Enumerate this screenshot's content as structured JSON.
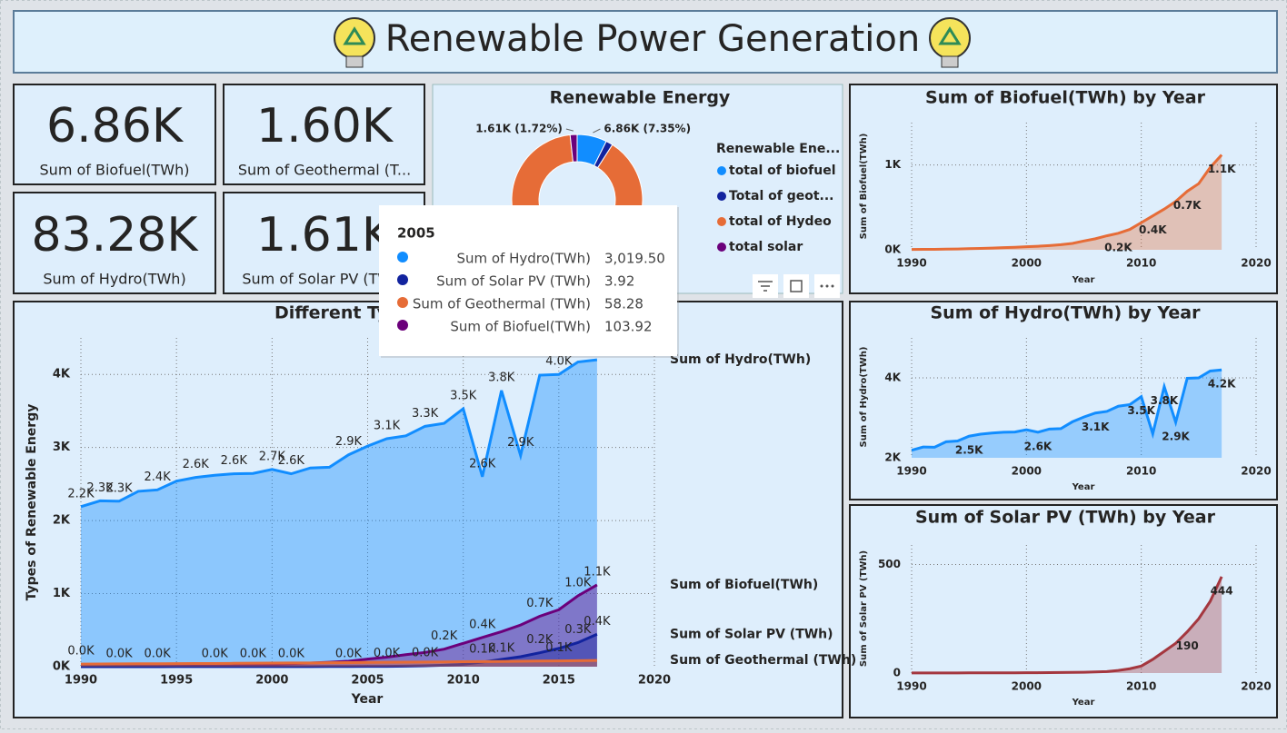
{
  "header": {
    "title": "Renewable Power Generation"
  },
  "kpis": [
    {
      "value": "6.86K",
      "label": "Sum of Biofuel(TWh)"
    },
    {
      "value": "1.60K",
      "label": "Sum of Geothermal (T..."
    },
    {
      "value": "83.28K",
      "label": "Sum of Hydro(TWh)"
    },
    {
      "value": "1.61K",
      "label": "Sum of Solar PV (TWh)"
    }
  ],
  "tooltip": {
    "title": "2005",
    "rows": [
      {
        "label": "Sum of Hydro(TWh)",
        "value": "3,019.50",
        "color": "#118dff"
      },
      {
        "label": "Sum of Solar PV (TWh)",
        "value": "3.92",
        "color": "#12239e"
      },
      {
        "label": "Sum of Geothermal (TWh)",
        "value": "58.28",
        "color": "#e66c37"
      },
      {
        "label": "Sum of Biofuel(TWh)",
        "value": "103.92",
        "color": "#6b007b"
      }
    ]
  },
  "chart_data": [
    {
      "type": "donut",
      "title": "Renewable Energy",
      "legend_title": "Renewable Ene...",
      "categories": [
        "total of biofuel",
        "Total of geot...",
        "total of Hydeo",
        "total solar"
      ],
      "values": [
        6860,
        1600,
        83280,
        1610
      ],
      "value_labels": [
        "6.86K (7.35%)",
        null,
        null,
        "1.61K (1.72%)"
      ],
      "colors": [
        "#118dff",
        "#12239e",
        "#e66c37",
        "#6b007b"
      ]
    },
    {
      "type": "area",
      "title": "Different Types of Renewable Energy",
      "xlabel": "Year",
      "ylabel": "Types of Renewable Energy",
      "x": [
        1990,
        1991,
        1992,
        1993,
        1994,
        1995,
        1996,
        1997,
        1998,
        1999,
        2000,
        2001,
        2002,
        2003,
        2004,
        2005,
        2006,
        2007,
        2008,
        2009,
        2010,
        2011,
        2012,
        2013,
        2014,
        2015,
        2016,
        2017
      ],
      "xlim": [
        1990,
        2020
      ],
      "xticks": [
        1990,
        1995,
        2000,
        2005,
        2010,
        2015,
        2020
      ],
      "ylim": [
        0,
        4500
      ],
      "yticks": [
        {
          "value": 0,
          "label": "0K"
        },
        {
          "value": 1000,
          "label": "1K"
        },
        {
          "value": 2000,
          "label": "2K"
        },
        {
          "value": 3000,
          "label": "3K"
        },
        {
          "value": 4000,
          "label": "4K"
        }
      ],
      "grid": true,
      "series": [
        {
          "name": "Sum of Hydro(TWh)",
          "color": "#118dff",
          "values": [
            2190,
            2270,
            2265,
            2400,
            2420,
            2540,
            2590,
            2620,
            2640,
            2645,
            2700,
            2640,
            2720,
            2730,
            2900,
            3019.5,
            3120,
            3160,
            3290,
            3330,
            3530,
            2600,
            3780,
            2890,
            3990,
            4000,
            4170,
            4200
          ],
          "value_labels": [
            "2.2K",
            "2.3K",
            "2.3K",
            null,
            "2.4K",
            null,
            "2.6K",
            null,
            "2.6K",
            null,
            "2.7K",
            "2.6K",
            null,
            null,
            "2.9K",
            null,
            "3.1K",
            null,
            "3.3K",
            null,
            "3.5K",
            "2.6K",
            "3.8K",
            "2.9K",
            null,
            "4.0K",
            null,
            null
          ]
        },
        {
          "name": "Sum of Biofuel(TWh)",
          "color": "#6b007b",
          "values": [
            4,
            5,
            6,
            8,
            10,
            13,
            16,
            20,
            25,
            30,
            36,
            42,
            50,
            60,
            75,
            103.92,
            130,
            165,
            195,
            240,
            320,
            400,
            480,
            570,
            690,
            780,
            970,
            1120
          ],
          "value_labels": [
            null,
            null,
            null,
            null,
            null,
            null,
            null,
            null,
            null,
            null,
            null,
            null,
            null,
            null,
            null,
            null,
            null,
            null,
            null,
            "0.2K",
            null,
            "0.4K",
            null,
            null,
            "0.7K",
            null,
            "1.0K",
            "1.1K"
          ]
        },
        {
          "name": "Sum of Solar PV (TWh)",
          "color": "#12239e",
          "values": [
            0.4,
            0.5,
            0.5,
            0.6,
            0.7,
            0.8,
            0.9,
            1.0,
            1.1,
            1.3,
            1.5,
            1.8,
            2.0,
            2.5,
            3.0,
            3.92,
            5,
            7,
            12,
            20,
            32,
            63,
            100,
            137,
            190,
            250,
            330,
            444
          ],
          "value_labels": [
            null,
            null,
            "0.0K",
            null,
            "0.0K",
            null,
            null,
            "0.0K",
            null,
            "0.0K",
            null,
            "0.0K",
            null,
            null,
            "0.0K",
            null,
            "0.0K",
            null,
            "0.0K",
            null,
            null,
            "0.1K",
            null,
            null,
            "0.2K",
            null,
            "0.3K",
            "0.4K"
          ]
        },
        {
          "name": "Sum of Geothermal (TWh)",
          "color": "#e66c37",
          "values": [
            36,
            38,
            39,
            40,
            41,
            42,
            43,
            44,
            46,
            48,
            50,
            51,
            52,
            54,
            56,
            58.28,
            60,
            62,
            64,
            66,
            68,
            70,
            72,
            74,
            77,
            80,
            82,
            85
          ],
          "value_labels": [
            "0.0K",
            null,
            null,
            null,
            null,
            null,
            null,
            null,
            null,
            null,
            null,
            null,
            null,
            null,
            null,
            null,
            null,
            null,
            null,
            null,
            null,
            null,
            "0.1K",
            null,
            null,
            "0.1K",
            null,
            null
          ]
        }
      ]
    },
    {
      "type": "area",
      "title": "Sum of Biofuel(TWh) by Year",
      "xlabel": "Year",
      "ylabel": "Sum of Biofuel(TWh)",
      "color": "#e66c37",
      "x": [
        1990,
        1991,
        1992,
        1993,
        1994,
        1995,
        1996,
        1997,
        1998,
        1999,
        2000,
        2001,
        2002,
        2003,
        2004,
        2005,
        2006,
        2007,
        2008,
        2009,
        2010,
        2011,
        2012,
        2013,
        2014,
        2015,
        2016,
        2017
      ],
      "xlim": [
        1990,
        2020
      ],
      "xticks": [
        1990,
        2000,
        2010,
        2020
      ],
      "ylim": [
        0,
        1500
      ],
      "yticks": [
        {
          "value": 0,
          "label": "0K"
        },
        {
          "value": 1000,
          "label": "1K"
        }
      ],
      "grid": true,
      "values": [
        4,
        5,
        6,
        8,
        10,
        13,
        16,
        20,
        25,
        30,
        36,
        42,
        50,
        60,
        75,
        103.92,
        130,
        165,
        195,
        240,
        320,
        400,
        480,
        570,
        690,
        780,
        970,
        1120
      ],
      "value_labels": [
        null,
        null,
        null,
        null,
        null,
        null,
        null,
        null,
        null,
        null,
        null,
        null,
        null,
        null,
        null,
        null,
        null,
        null,
        "0.2K",
        null,
        null,
        "0.4K",
        null,
        null,
        "0.7K",
        null,
        null,
        "1.1K"
      ]
    },
    {
      "type": "area",
      "title": "Sum of Hydro(TWh) by Year",
      "xlabel": "Year",
      "ylabel": "Sum of Hydro(TWh)",
      "color": "#118dff",
      "x": [
        1990,
        1991,
        1992,
        1993,
        1994,
        1995,
        1996,
        1997,
        1998,
        1999,
        2000,
        2001,
        2002,
        2003,
        2004,
        2005,
        2006,
        2007,
        2008,
        2009,
        2010,
        2011,
        2012,
        2013,
        2014,
        2015,
        2016,
        2017
      ],
      "xlim": [
        1990,
        2020
      ],
      "xticks": [
        1990,
        2000,
        2010,
        2020
      ],
      "ylim": [
        2000,
        5000
      ],
      "yticks": [
        {
          "value": 2000,
          "label": "2K"
        },
        {
          "value": 4000,
          "label": "4K"
        }
      ],
      "grid": true,
      "values": [
        2190,
        2270,
        2265,
        2400,
        2420,
        2540,
        2590,
        2620,
        2640,
        2645,
        2700,
        2640,
        2720,
        2730,
        2900,
        3019.5,
        3120,
        3160,
        3290,
        3330,
        3530,
        2600,
        3780,
        2890,
        3990,
        4000,
        4170,
        4200
      ],
      "value_labels": [
        null,
        null,
        null,
        null,
        null,
        "2.5K",
        null,
        null,
        null,
        null,
        null,
        "2.6K",
        null,
        null,
        null,
        null,
        "3.1K",
        null,
        null,
        null,
        "3.5K",
        null,
        "3.8K",
        "2.9K",
        null,
        null,
        null,
        "4.2K"
      ]
    },
    {
      "type": "area",
      "title": "Sum of Solar PV (TWh) by Year",
      "xlabel": "Year",
      "ylabel": "Sum of Solar PV (TWh)",
      "color": "#a4373f",
      "x": [
        1990,
        1991,
        1992,
        1993,
        1994,
        1995,
        1996,
        1997,
        1998,
        1999,
        2000,
        2001,
        2002,
        2003,
        2004,
        2005,
        2006,
        2007,
        2008,
        2009,
        2010,
        2011,
        2012,
        2013,
        2014,
        2015,
        2016,
        2017
      ],
      "xlim": [
        1990,
        2020
      ],
      "xticks": [
        1990,
        2000,
        2010,
        2020
      ],
      "ylim": [
        0,
        590
      ],
      "yticks": [
        0,
        500
      ],
      "grid": true,
      "values": [
        0.4,
        0.5,
        0.5,
        0.6,
        0.7,
        0.8,
        0.9,
        1.0,
        1.1,
        1.3,
        1.5,
        1.8,
        2.0,
        2.5,
        3.0,
        3.92,
        5,
        7,
        12,
        20,
        32,
        63,
        100,
        137,
        190,
        250,
        330,
        444
      ],
      "value_labels": [
        null,
        null,
        null,
        null,
        null,
        null,
        null,
        null,
        null,
        null,
        null,
        null,
        null,
        null,
        null,
        null,
        null,
        null,
        null,
        null,
        null,
        null,
        null,
        null,
        "190",
        null,
        null,
        "444"
      ]
    }
  ]
}
